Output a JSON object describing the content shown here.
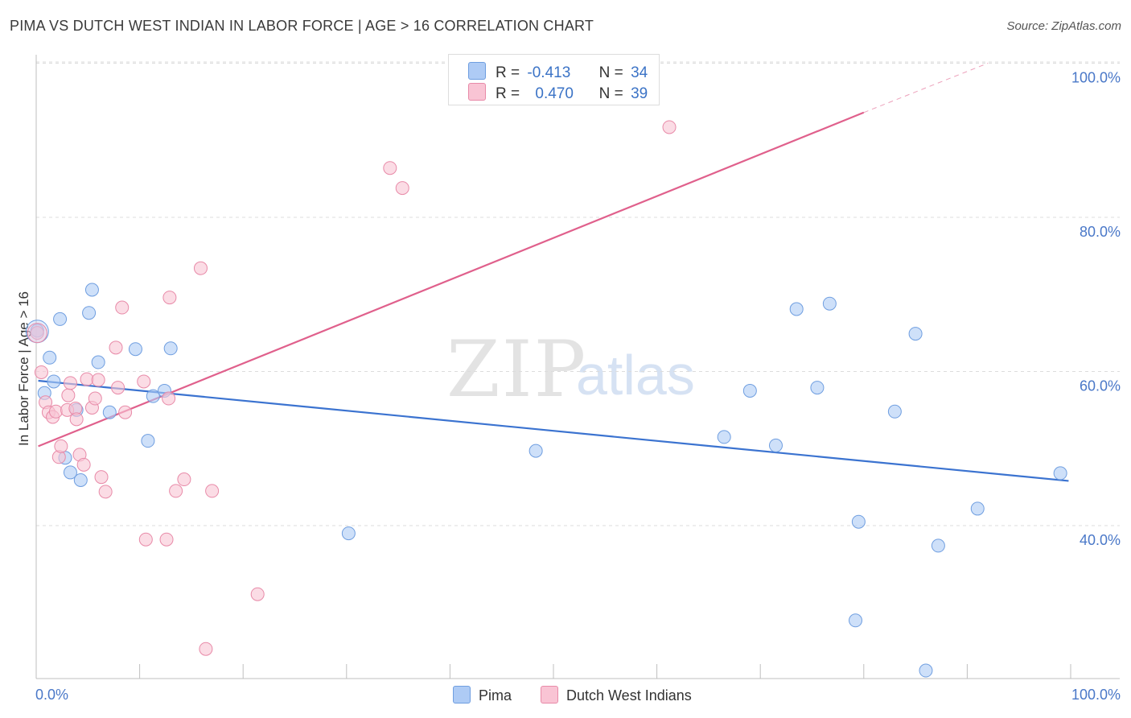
{
  "header": {
    "title": "PIMA VS DUTCH WEST INDIAN IN LABOR FORCE | AGE > 16 CORRELATION CHART",
    "source": "Source: ZipAtlas.com"
  },
  "watermark": {
    "zip": "ZIP",
    "atlas": "atlas"
  },
  "legend": {
    "rows": [
      {
        "r_label": "R =",
        "r_value": "-0.413",
        "n_label": "N =",
        "n_value": "34",
        "color": "#aecbf5",
        "border": "#6f9ee0"
      },
      {
        "r_label": "R =",
        "r_value": "0.470",
        "n_label": "N =",
        "n_value": "39",
        "color": "#f9c4d4",
        "border": "#e88aa8"
      }
    ]
  },
  "bottom_legend": [
    {
      "label": "Pima",
      "color": "#aecbf5",
      "border": "#6f9ee0"
    },
    {
      "label": "Dutch West Indians",
      "color": "#f9c4d4",
      "border": "#e88aa8"
    }
  ],
  "chart_data": {
    "type": "scatter",
    "title": "PIMA VS DUTCH WEST INDIAN IN LABOR FORCE | AGE > 16 CORRELATION CHART",
    "xlabel": "",
    "ylabel": "In Labor Force | Age > 16",
    "xlim": [
      0,
      100
    ],
    "ylim": [
      20,
      102
    ],
    "x_tick_labels": [
      "0.0%",
      "100.0%"
    ],
    "y_ticks": [
      40,
      60,
      80,
      100
    ],
    "y_tick_labels": [
      "40.0%",
      "60.0%",
      "80.0%",
      "100.0%"
    ],
    "grid": true,
    "series": [
      {
        "name": "Pima",
        "color": "#aecbf5",
        "stroke": "#6f9ee0",
        "line_color": "#3b73d0",
        "trend": {
          "x0": 0.2,
          "y0": 58.8,
          "x1": 99.8,
          "y1": 45.8
        },
        "points": [
          [
            0.1,
            65.3
          ],
          [
            0.8,
            57.2
          ],
          [
            1.3,
            61.8
          ],
          [
            1.7,
            58.7
          ],
          [
            2.3,
            66.8
          ],
          [
            2.8,
            48.8
          ],
          [
            3.3,
            46.9
          ],
          [
            3.9,
            55.0
          ],
          [
            4.3,
            45.9
          ],
          [
            5.1,
            67.6
          ],
          [
            5.4,
            70.6
          ],
          [
            6.0,
            61.2
          ],
          [
            7.1,
            54.7
          ],
          [
            9.6,
            62.9
          ],
          [
            10.8,
            51.0
          ],
          [
            11.3,
            56.8
          ],
          [
            12.4,
            57.5
          ],
          [
            13.0,
            63.0
          ],
          [
            30.2,
            39.0
          ],
          [
            48.3,
            49.7
          ],
          [
            66.5,
            51.5
          ],
          [
            69.0,
            57.5
          ],
          [
            71.5,
            50.4
          ],
          [
            73.5,
            68.1
          ],
          [
            75.5,
            57.9
          ],
          [
            76.7,
            68.8
          ],
          [
            79.5,
            40.5
          ],
          [
            79.2,
            27.7
          ],
          [
            83.0,
            54.8
          ],
          [
            85.0,
            64.9
          ],
          [
            86.0,
            21.2
          ],
          [
            87.2,
            37.4
          ],
          [
            91.0,
            42.2
          ],
          [
            99.0,
            46.8
          ]
        ]
      },
      {
        "name": "Dutch West Indians",
        "color": "#f9c4d4",
        "stroke": "#e88aa8",
        "line_color": "#e0608c",
        "trend": {
          "x0": 0.2,
          "y0": 50.3,
          "x1": 80.0,
          "y1": 93.6
        },
        "trend_extension": {
          "x0": 80.0,
          "y0": 93.6,
          "x1": 92.0,
          "y1": 100.0
        },
        "points": [
          [
            0.1,
            65.0
          ],
          [
            0.5,
            59.9
          ],
          [
            0.9,
            56.0
          ],
          [
            1.2,
            54.7
          ],
          [
            1.6,
            54.1
          ],
          [
            1.9,
            54.8
          ],
          [
            2.2,
            48.9
          ],
          [
            2.4,
            50.3
          ],
          [
            3.0,
            55.0
          ],
          [
            3.1,
            56.9
          ],
          [
            3.3,
            58.5
          ],
          [
            3.8,
            55.2
          ],
          [
            3.9,
            53.8
          ],
          [
            4.2,
            49.2
          ],
          [
            4.6,
            47.9
          ],
          [
            4.9,
            59.0
          ],
          [
            5.4,
            55.3
          ],
          [
            5.7,
            56.5
          ],
          [
            6.0,
            58.9
          ],
          [
            6.3,
            46.3
          ],
          [
            6.7,
            44.4
          ],
          [
            7.7,
            63.1
          ],
          [
            7.9,
            57.9
          ],
          [
            8.3,
            68.3
          ],
          [
            8.6,
            54.7
          ],
          [
            10.4,
            58.7
          ],
          [
            10.6,
            38.2
          ],
          [
            12.6,
            38.2
          ],
          [
            12.8,
            56.5
          ],
          [
            12.9,
            69.6
          ],
          [
            13.5,
            44.5
          ],
          [
            14.3,
            46.0
          ],
          [
            15.9,
            73.4
          ],
          [
            16.4,
            24.0
          ],
          [
            17.0,
            44.5
          ],
          [
            21.4,
            31.1
          ],
          [
            34.2,
            86.4
          ],
          [
            35.4,
            83.8
          ],
          [
            61.2,
            91.7
          ]
        ]
      }
    ]
  }
}
